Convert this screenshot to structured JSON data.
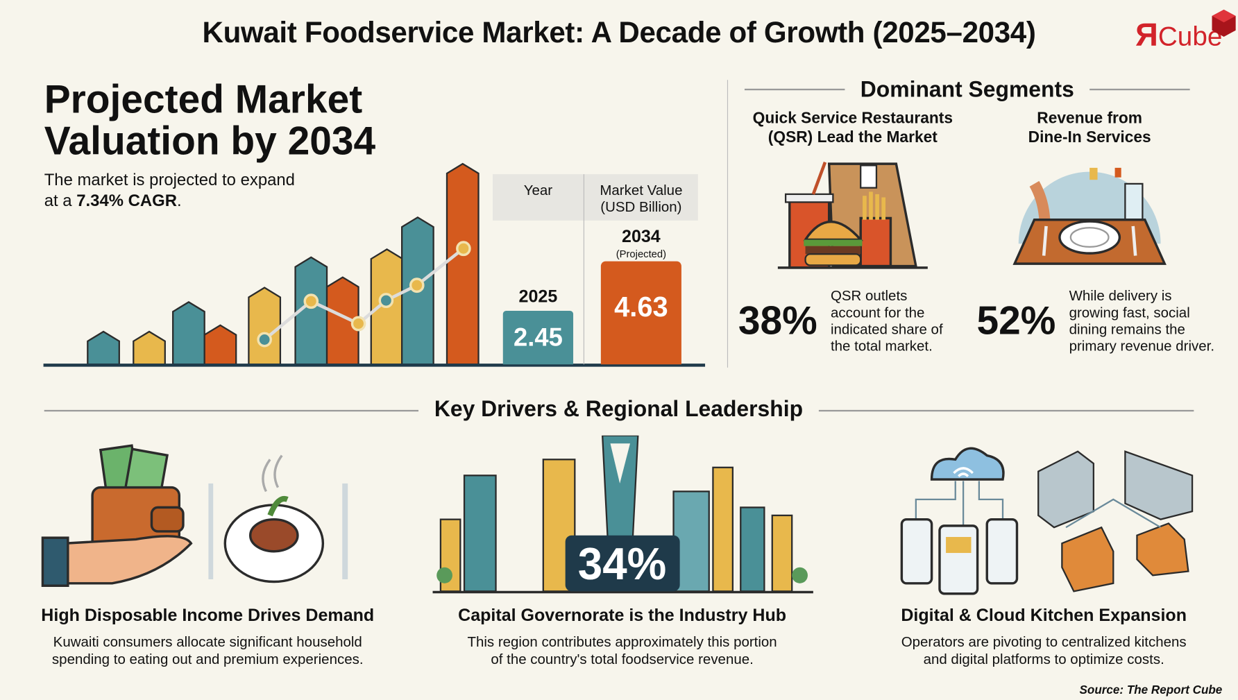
{
  "title": "Kuwait Foodservice Market: A Decade of Growth (2025–2034)",
  "logo": {
    "mark": "Я",
    "text": "Cube",
    "color": "#d2232a"
  },
  "valuation": {
    "heading_line1": "Projected Market",
    "heading_line2": "Valuation by 2034",
    "subtitle_line1": "The market is projected to expand",
    "subtitle_prefix": "at a ",
    "subtitle_cagr": "7.34% CAGR",
    "subtitle_suffix": ".",
    "table": {
      "col_year": "Year",
      "col_value_line1": "Market Value",
      "col_value_line2": "(USD Billion)",
      "rows": [
        {
          "year": "2025",
          "note": "",
          "value": "2.45",
          "color": "#4a9097"
        },
        {
          "year": "2034",
          "note": "(Projected)",
          "value": "4.63",
          "color": "#d45a1e"
        }
      ]
    }
  },
  "segments": {
    "heading": "Dominant Segments",
    "items": [
      {
        "title_line1": "Quick Service Restaurants",
        "title_line2": "(QSR) Lead the Market",
        "percent": "38%",
        "desc": [
          "QSR outlets",
          "account for the",
          "indicated share of",
          "the total market."
        ],
        "icon": "fast-food-icon"
      },
      {
        "title_line1": "Revenue from",
        "title_line2": "Dine-In Services",
        "percent": "52%",
        "desc": [
          "While delivery is",
          "growing fast, social",
          "dining remains the",
          "primary revenue driver."
        ],
        "icon": "dine-in-table-icon"
      }
    ]
  },
  "drivers": {
    "heading": "Key Drivers & Regional Leadership",
    "items": [
      {
        "title": "High Disposable Income Drives Demand",
        "desc_line1": "Kuwaiti consumers allocate significant household",
        "desc_line2": "spending to eating out and premium experiences.",
        "icon": "wallet-money-icon"
      },
      {
        "title": "Capital Governorate is the Industry Hub",
        "badge": "34%",
        "desc_line1": "This region contributes approximately this portion",
        "desc_line2": "of the country's total foodservice revenue.",
        "icon": "city-skyline-icon"
      },
      {
        "title": "Digital & Cloud Kitchen Expansion",
        "desc_line1": "Operators are pivoting to centralized kitchens",
        "desc_line2": "and digital platforms to optimize costs.",
        "icon": "cloud-kitchen-icon"
      }
    ]
  },
  "source": "Source: The Report Cube",
  "colors": {
    "teal": "#4a9097",
    "yellow": "#e8b84c",
    "orange": "#d45a1e",
    "navy": "#1f3a4a",
    "background": "#f7f5ec"
  }
}
